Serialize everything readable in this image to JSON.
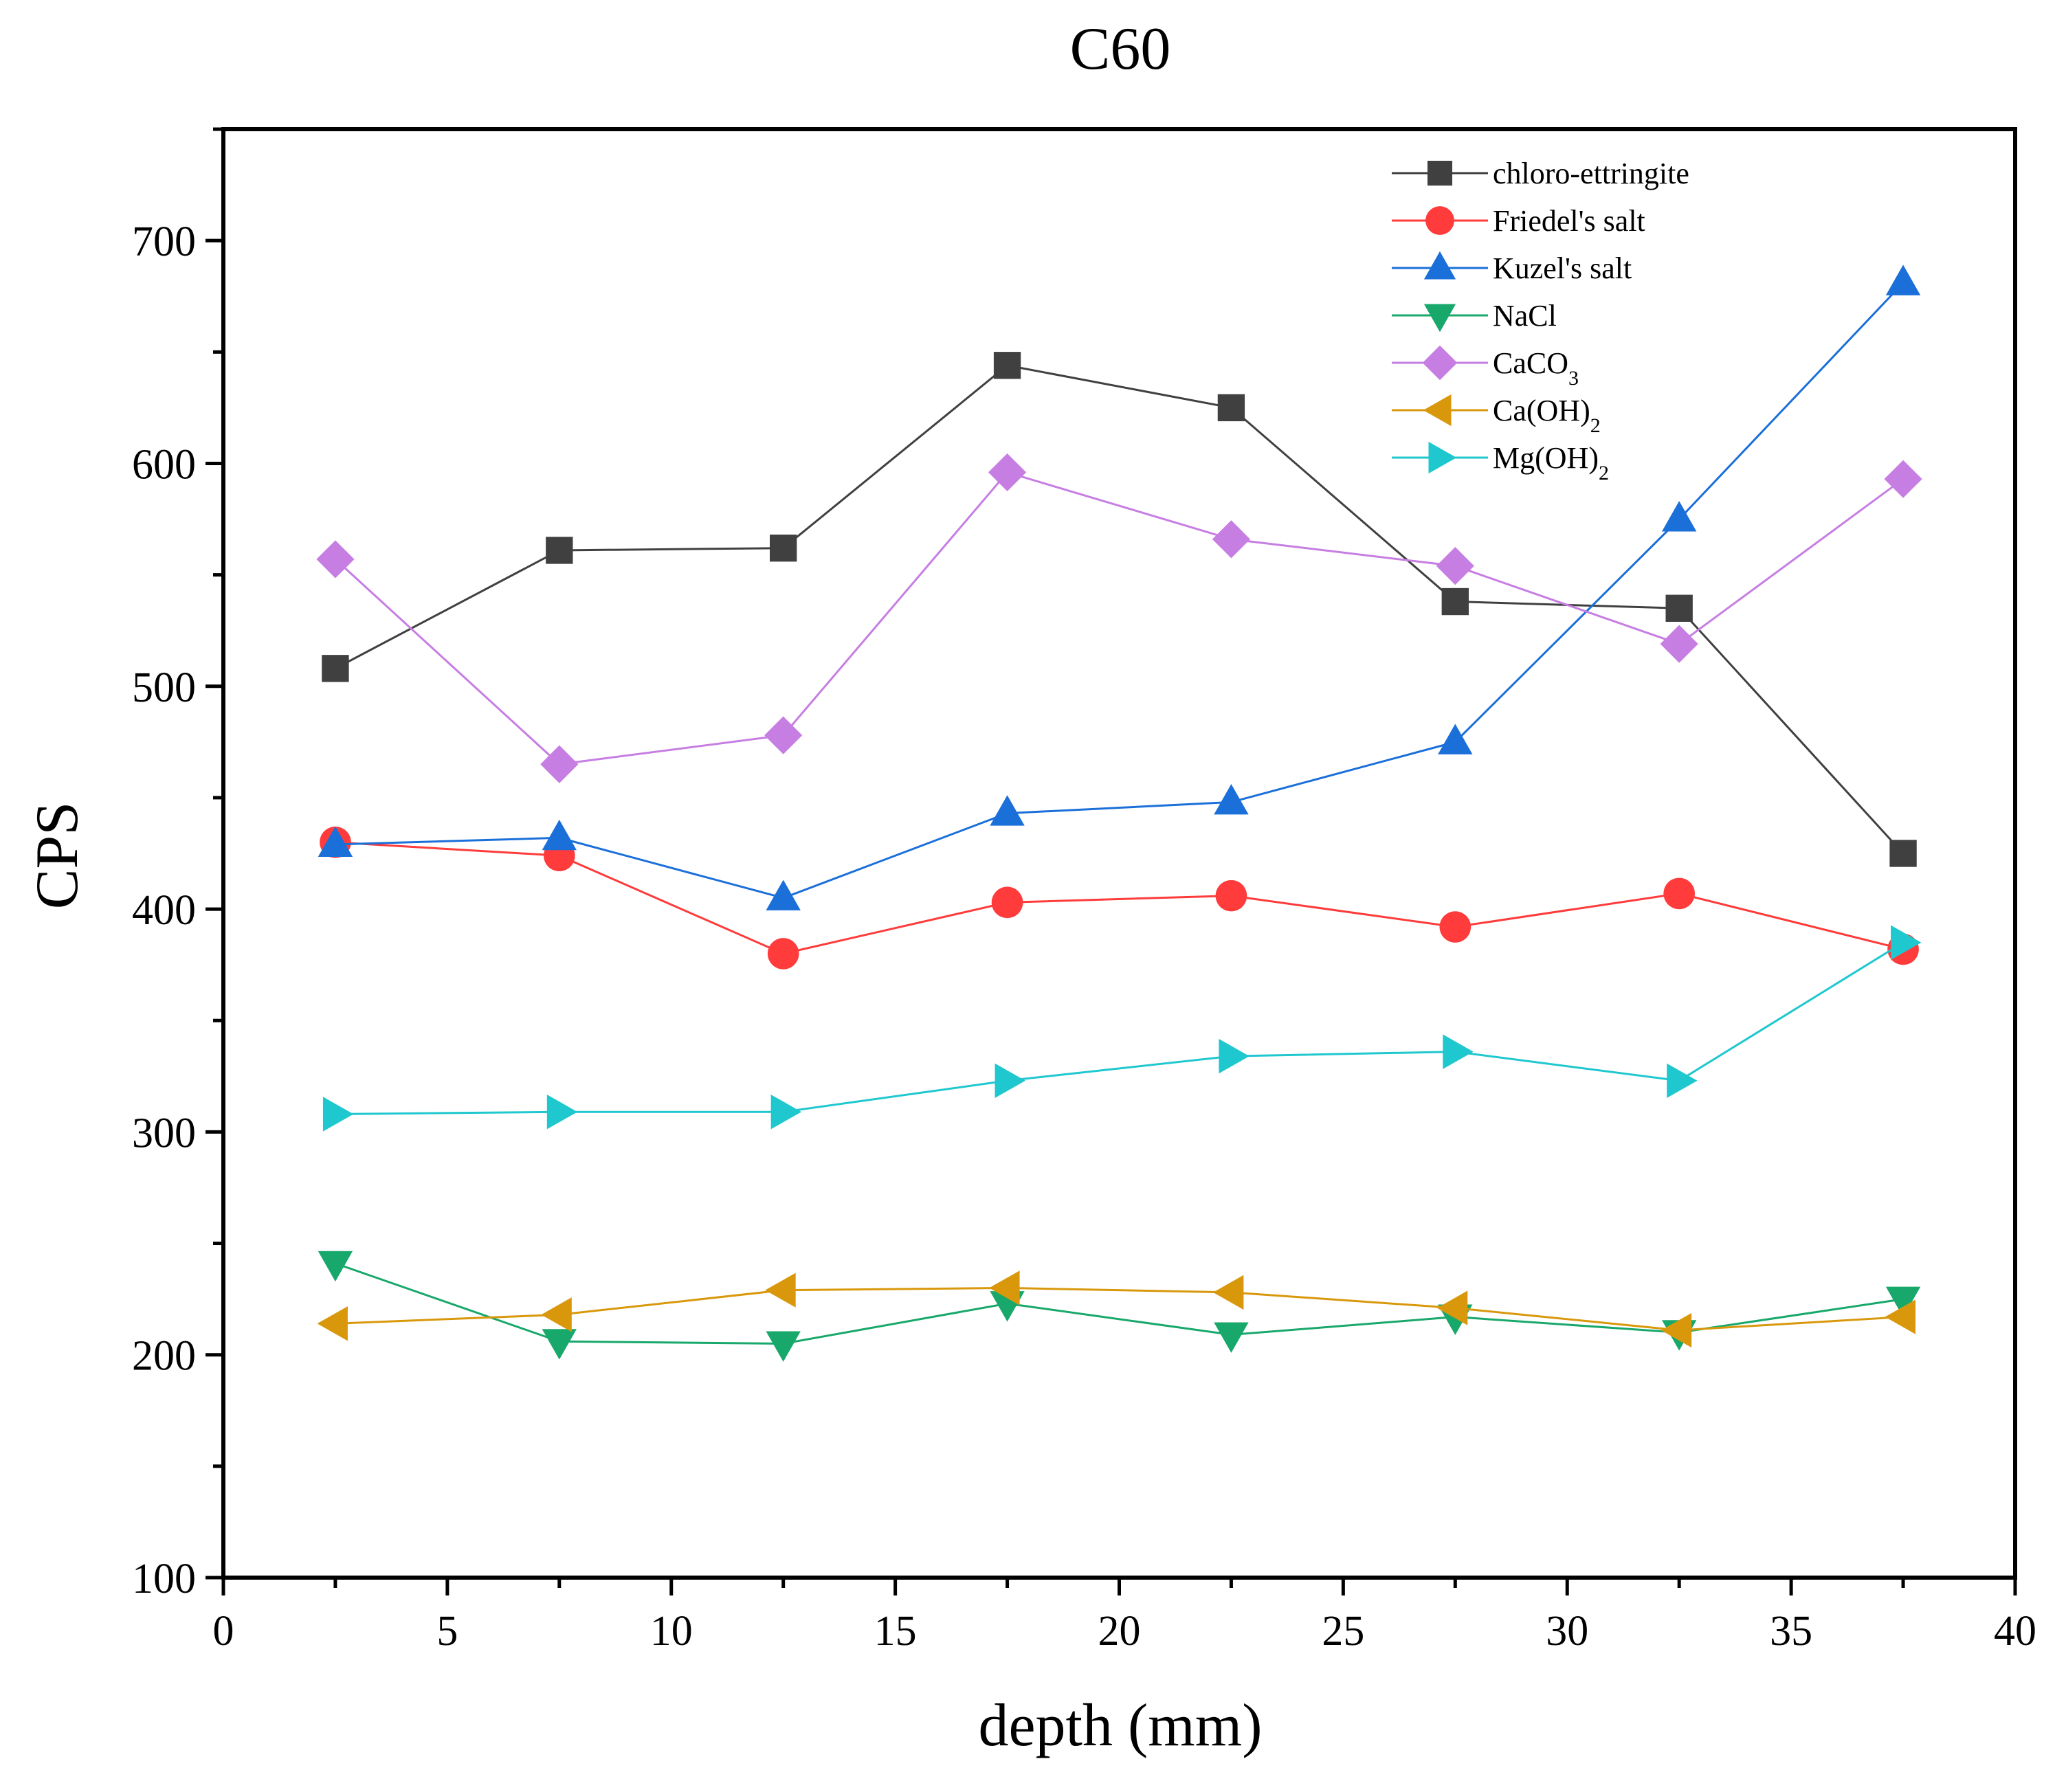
{
  "chart_data": {
    "type": "line",
    "title": "C60",
    "xlabel": "depth (mm)",
    "ylabel": "CPS",
    "xlim": [
      0,
      40
    ],
    "ylim": [
      100,
      750
    ],
    "xticks": [
      0,
      5,
      10,
      15,
      20,
      25,
      30,
      35,
      40
    ],
    "yticks": [
      100,
      200,
      300,
      400,
      500,
      600,
      700
    ],
    "x": [
      2.5,
      7.5,
      12.5,
      17.5,
      22.5,
      27.5,
      32.5,
      37.5
    ],
    "legend_position": "top-right",
    "series": [
      {
        "name": "chloro-ettringite",
        "color": "#404040",
        "marker": "square",
        "values": [
          508,
          561,
          562,
          644,
          625,
          538,
          535,
          425
        ]
      },
      {
        "name": "Friedel's salt",
        "color": "#ff3b3b",
        "marker": "circle",
        "values": [
          430,
          424,
          380,
          403,
          406,
          392,
          407,
          382
        ]
      },
      {
        "name": "Kuzel's salt",
        "color": "#1a6fd9",
        "marker": "triangle-up",
        "values": [
          429,
          432,
          405,
          443,
          448,
          475,
          575,
          681
        ]
      },
      {
        "name": "NaCl",
        "color": "#18a86b",
        "marker": "triangle-down",
        "values": [
          241,
          206,
          205,
          223,
          209,
          217,
          210,
          225
        ]
      },
      {
        "name": "CaCO3",
        "name_base": "CaCO",
        "name_sub": "3",
        "color": "#c77ee3",
        "marker": "diamond",
        "values": [
          557,
          465,
          478,
          596,
          566,
          554,
          519,
          593
        ]
      },
      {
        "name": "Ca(OH)2",
        "name_base": "Ca(OH)",
        "name_sub": "2",
        "color": "#d9980b",
        "marker": "triangle-left",
        "values": [
          214,
          218,
          229,
          230,
          228,
          221,
          211,
          217
        ]
      },
      {
        "name": "Mg(OH)2",
        "name_base": "Mg(OH)",
        "name_sub": "2",
        "color": "#1fc7cf",
        "marker": "triangle-right",
        "values": [
          308,
          309,
          309,
          323,
          334,
          336,
          323,
          385
        ]
      }
    ]
  }
}
